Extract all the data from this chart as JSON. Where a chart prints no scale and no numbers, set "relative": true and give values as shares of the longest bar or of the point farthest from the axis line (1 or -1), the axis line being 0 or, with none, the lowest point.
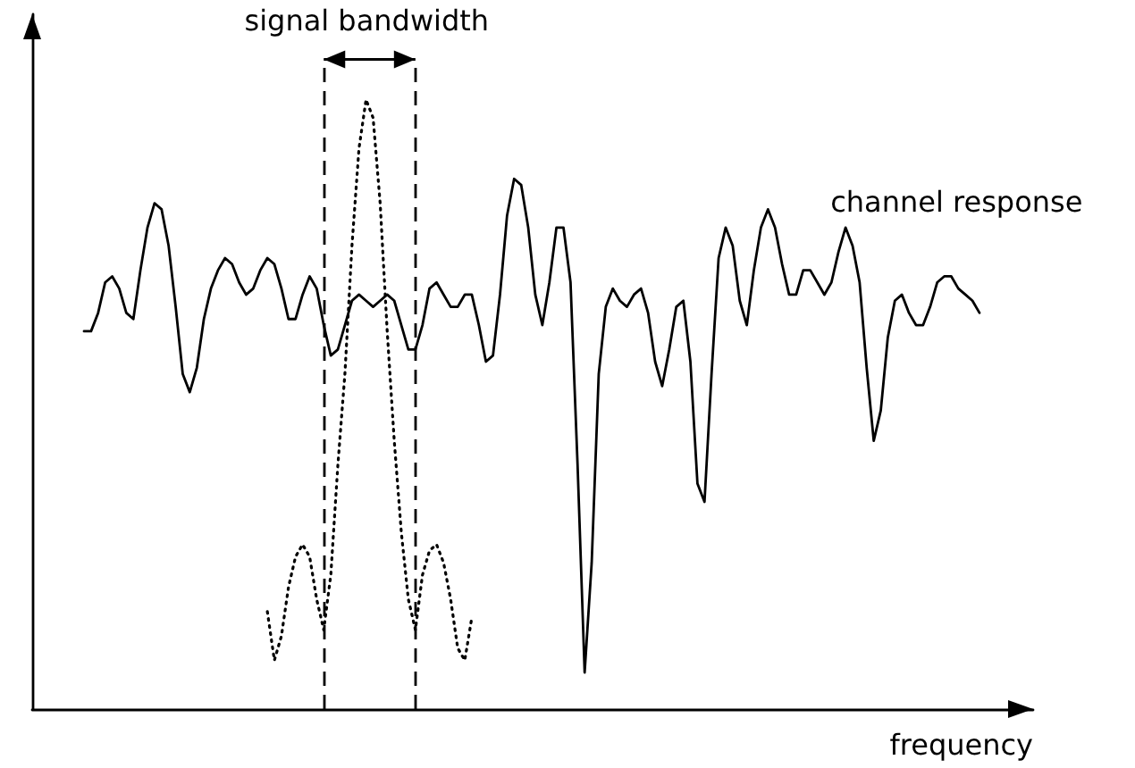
{
  "chart_data": {
    "type": "line",
    "relative": true,
    "xlabel": "frequency",
    "grid": false,
    "legend": false,
    "marker": "none",
    "categories": [
      null,
      null,
      null,
      null,
      null,
      null,
      null,
      null,
      null,
      null,
      null,
      null,
      null,
      null,
      null,
      null,
      null,
      null,
      null,
      null,
      null,
      null,
      null,
      null,
      null,
      null,
      null,
      null,
      null,
      null,
      null,
      null,
      null,
      null,
      null,
      null,
      null,
      null,
      null,
      null,
      null,
      null,
      null,
      null,
      null,
      null,
      null,
      null,
      null,
      null,
      null,
      null,
      null,
      null,
      null,
      null,
      null,
      null,
      null,
      null,
      null,
      null,
      null,
      null,
      null,
      null,
      null,
      null,
      null,
      null,
      null,
      null,
      null,
      null,
      null,
      null,
      null,
      null,
      null,
      null,
      null,
      null,
      null,
      null,
      null,
      null,
      null,
      null,
      null,
      null,
      null,
      null,
      null,
      null,
      null,
      null,
      null,
      null,
      null,
      null,
      null,
      null,
      null,
      null,
      null,
      null,
      null,
      null,
      null,
      null,
      null,
      null,
      null,
      null,
      null,
      null,
      null,
      null,
      null,
      null,
      null,
      null,
      null,
      null,
      null,
      null,
      null,
      null
    ],
    "annotations": [
      "signal bandwidth"
    ],
    "series": [
      {
        "name": "channel response",
        "color": "#000000",
        "line_style": "solid",
        "values": [
          0.62,
          0.62,
          0.65,
          0.7,
          0.71,
          0.69,
          0.65,
          0.64,
          0.72,
          0.79,
          0.83,
          0.82,
          0.76,
          0.66,
          0.55,
          0.52,
          0.56,
          0.64,
          0.69,
          0.72,
          0.74,
          0.73,
          0.7,
          0.68,
          0.69,
          0.72,
          0.74,
          0.73,
          0.69,
          0.64,
          0.64,
          0.68,
          0.71,
          0.69,
          0.63,
          0.58,
          0.59,
          0.63,
          0.67,
          0.68,
          0.67,
          0.66,
          0.67,
          0.68,
          0.67,
          0.63,
          0.59,
          0.59,
          0.63,
          0.69,
          0.7,
          0.68,
          0.66,
          0.66,
          0.68,
          0.68,
          0.63,
          0.57,
          0.58,
          0.68,
          0.81,
          0.87,
          0.86,
          0.79,
          0.68,
          0.63,
          0.7,
          0.79,
          0.79,
          0.7,
          0.4,
          0.06,
          0.24,
          0.55,
          0.66,
          0.69,
          0.67,
          0.66,
          0.68,
          0.69,
          0.65,
          0.57,
          0.53,
          0.59,
          0.66,
          0.67,
          0.57,
          0.37,
          0.34,
          0.55,
          0.74,
          0.79,
          0.76,
          0.67,
          0.63,
          0.72,
          0.79,
          0.82,
          0.79,
          0.73,
          0.68,
          0.68,
          0.72,
          0.72,
          0.7,
          0.68,
          0.7,
          0.75,
          0.79,
          0.76,
          0.7,
          0.56,
          0.44,
          0.49,
          0.61,
          0.67,
          0.68,
          0.65,
          0.63,
          0.63,
          0.66,
          0.7,
          0.71,
          0.71,
          0.69,
          0.68,
          0.67,
          0.65
        ]
      },
      {
        "color": "#000000",
        "line_style": "dotted",
        "values": [
          null,
          null,
          null,
          null,
          null,
          null,
          null,
          null,
          null,
          null,
          null,
          null,
          null,
          null,
          null,
          null,
          null,
          null,
          null,
          null,
          null,
          null,
          null,
          null,
          null,
          null,
          0.16,
          0.08,
          0.12,
          0.2,
          0.25,
          0.27,
          0.25,
          0.18,
          0.13,
          0.22,
          0.4,
          0.55,
          0.76,
          0.92,
          1,
          0.97,
          0.83,
          0.62,
          0.44,
          0.29,
          0.18,
          0.13,
          0.22,
          0.26,
          0.27,
          0.24,
          0.18,
          0.1,
          0.08,
          0.15,
          null,
          null,
          null,
          null,
          null,
          null,
          null,
          null,
          null,
          null,
          null,
          null,
          null,
          null,
          null,
          null,
          null,
          null,
          null,
          null,
          null,
          null,
          null,
          null,
          null,
          null,
          null,
          null,
          null,
          null,
          null,
          null,
          null,
          null,
          null,
          null,
          null,
          null,
          null,
          null,
          null,
          null,
          null,
          null,
          null,
          null,
          null,
          null,
          null,
          null,
          null,
          null,
          null,
          null,
          null,
          null,
          null,
          null,
          null,
          null,
          null,
          null,
          null,
          null,
          null,
          null,
          null,
          null,
          null,
          null,
          null,
          null
        ]
      }
    ]
  }
}
